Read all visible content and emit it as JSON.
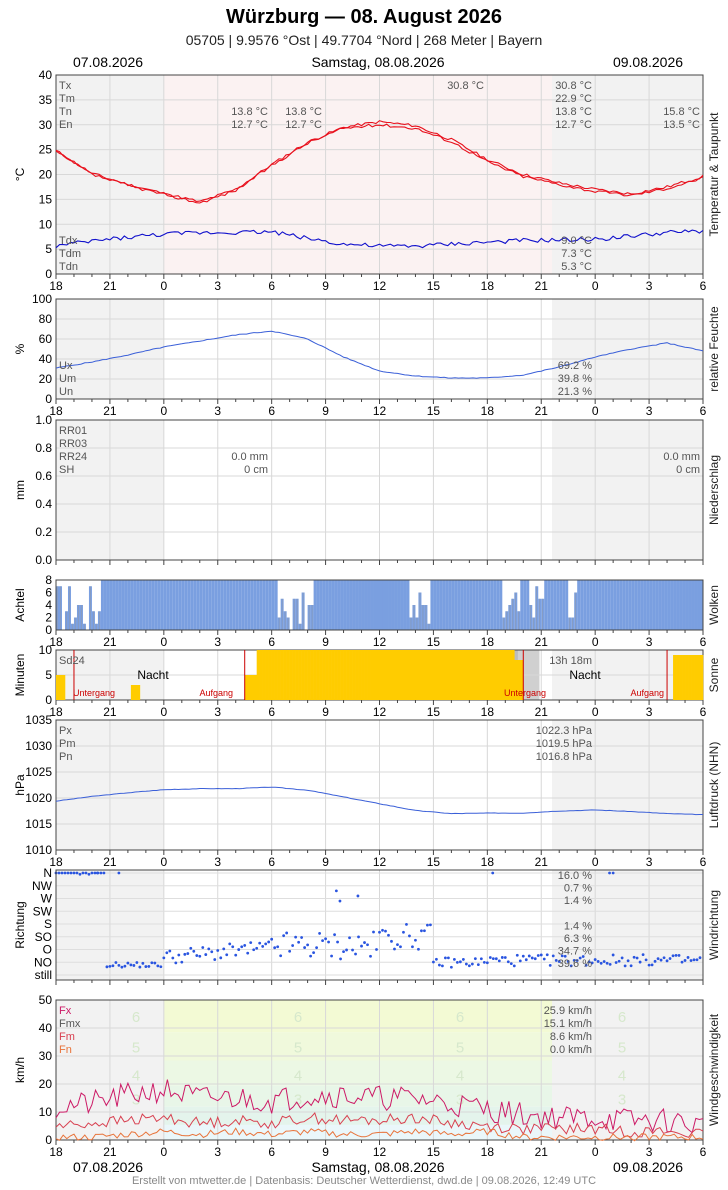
{
  "title": "Würzburg  —  08. August 2026",
  "subtitle": "05705  |  9.9576 °Ost  |  49.7704 °Nord  |  268 Meter  |  Bayern",
  "footer": "Erstellt von mtwetter.de | Datenbasis: Deutscher Wetterdienst, dwd.de | 09.08.2026, 12:49 UTC",
  "dates": {
    "left": "07.08.2026",
    "center": "Samstag, 08.08.2026",
    "right": "09.08.2026"
  },
  "colors": {
    "temp": "#e8101c",
    "dew": "#1010cc",
    "hum": "#3a5fd8",
    "cloud": "#7a9fe0",
    "sun": "#ffcc00",
    "press": "#3a5fd8",
    "wind": "#2a55e0",
    "gust": "#cc1a66",
    "windMax": "#d84050",
    "windMean": "#e8733a"
  },
  "chart_data": [
    {
      "type": "line",
      "ylabel": "°C",
      "side_label": "Temperatur & Taupunkt",
      "ylim": [
        0,
        40
      ],
      "yticks": [
        "0",
        "5",
        "10",
        "15",
        "20",
        "25",
        "30",
        "35",
        "40"
      ],
      "xticks": [
        "18",
        "21",
        "0",
        "3",
        "6",
        "9",
        "12",
        "15",
        "18",
        "21",
        "0",
        "3",
        "6"
      ],
      "hours": [
        18,
        20,
        22,
        24,
        26,
        28,
        30,
        32,
        34,
        36,
        38,
        40,
        42,
        44,
        46,
        48,
        50,
        52,
        54
      ],
      "series": [
        {
          "name": "Tx",
          "values": [
            24.8,
            20.2,
            18.0,
            16.2,
            14.5,
            17.0,
            22.0,
            26.5,
            29.5,
            30.6,
            29.8,
            27.0,
            23.0,
            20.0,
            18.3,
            17.0,
            16.1,
            17.5,
            19.6
          ]
        },
        {
          "name": "Tn",
          "values": [
            24.6,
            20.0,
            17.8,
            16.0,
            14.3,
            16.8,
            21.8,
            26.3,
            29.3,
            30.0,
            29.3,
            26.6,
            22.6,
            19.6,
            18.0,
            16.6,
            15.8,
            17.2,
            19.3
          ]
        },
        {
          "name": "Td",
          "values": [
            5.6,
            6.6,
            7.4,
            8.0,
            8.3,
            8.4,
            8.5,
            7.2,
            6.0,
            5.6,
            5.6,
            6.0,
            6.4,
            6.7,
            6.8,
            7.0,
            7.6,
            8.3,
            8.6
          ]
        }
      ],
      "labels": {
        "legend_top": [
          "Tx",
          "Tm",
          "Tn",
          "En"
        ],
        "legend_bottom": [
          "Tdx",
          "Tdm",
          "Tdn"
        ],
        "day1": [
          "13.8 °C",
          "12.7 °C"
        ],
        "night1": [
          "13.8 °C",
          "12.7 °C"
        ],
        "daymax": "30.8 °C",
        "stats_top": [
          "30.8 °C",
          "22.9 °C",
          "13.8 °C",
          "12.7 °C"
        ],
        "right": [
          "15.8 °C",
          "13.5 °C"
        ],
        "stats_bottom": [
          "9.0 °C",
          "7.3 °C",
          "5.3 °C"
        ]
      }
    },
    {
      "type": "line",
      "ylabel": "%",
      "side_label": "relative Feuchte",
      "ylim": [
        0,
        100
      ],
      "yticks": [
        "0",
        "20",
        "40",
        "60",
        "80",
        "100"
      ],
      "hours": [
        18,
        20,
        22,
        24,
        26,
        28,
        30,
        32,
        34,
        36,
        38,
        40,
        42,
        44,
        46,
        48,
        50,
        52,
        54
      ],
      "series": [
        {
          "name": "U",
          "values": [
            31,
            37,
            44,
            52,
            58,
            64,
            68,
            60,
            42,
            28,
            23,
            21,
            21,
            24,
            32,
            42,
            50,
            56,
            48
          ]
        }
      ],
      "labels": {
        "legend": [
          "Ux",
          "Um",
          "Un"
        ],
        "stats": [
          "69.2 %",
          "39.8 %",
          "21.3 %"
        ]
      }
    },
    {
      "type": "bar",
      "ylabel": "mm",
      "side_label": "Niederschlag",
      "ylim": [
        0,
        1.0
      ],
      "yticks": [
        "0.0",
        "0.2",
        "0.4",
        "0.6",
        "0.8",
        "1.0"
      ],
      "values": [],
      "labels": {
        "legend": [
          "RR01",
          "RR03",
          "RR24",
          "SH"
        ],
        "day_rr": "0.0 mm",
        "day_sh": "0 cm",
        "right_rr": "0.0 mm",
        "right_sh": "0 cm"
      }
    },
    {
      "type": "bar",
      "ylabel": "Achtel",
      "side_label": "Wolken",
      "ylim": [
        0,
        8
      ],
      "yticks": [
        "0",
        "2",
        "4",
        "6",
        "8"
      ]
    },
    {
      "type": "bar",
      "ylabel": "Minuten",
      "side_label": "Sonne",
      "ylim": [
        0,
        10
      ],
      "yticks": [
        "0",
        "5",
        "10"
      ],
      "labels": {
        "sd24": "Sd24",
        "night": "Nacht",
        "sunset": "Untergang",
        "sunrise": "Aufgang",
        "duration": "13h 18m"
      }
    },
    {
      "type": "line",
      "ylabel": "hPa",
      "side_label": "Luftdruck (NHN)",
      "ylim": [
        1010,
        1035
      ],
      "yticks": [
        "1010",
        "1015",
        "1020",
        "1025",
        "1030",
        "1035"
      ],
      "hours": [
        18,
        20,
        22,
        24,
        26,
        28,
        30,
        32,
        34,
        36,
        38,
        40,
        42,
        44,
        46,
        48,
        50,
        52,
        54
      ],
      "series": [
        {
          "name": "P",
          "values": [
            1019.4,
            1020.3,
            1021.0,
            1021.6,
            1021.8,
            1021.8,
            1022.1,
            1021.5,
            1020.2,
            1018.9,
            1017.6,
            1017.0,
            1017.1,
            1017.1,
            1017.5,
            1017.7,
            1017.4,
            1017.0,
            1016.8
          ]
        }
      ],
      "labels": {
        "legend": [
          "Px",
          "Pm",
          "Pn"
        ],
        "stats": [
          "1022.3 hPa",
          "1019.5 hPa",
          "1016.8 hPa"
        ]
      }
    },
    {
      "type": "scatter",
      "ylabel": "Richtung",
      "side_label": "Windrichtung",
      "categories": [
        "still",
        "NO",
        "O",
        "SO",
        "S",
        "SW",
        "W",
        "NW",
        "N"
      ],
      "labels": {
        "stats": [
          "16.0 %",
          "0.7 %",
          "1.4 %",
          "",
          "1.4 %",
          "6.3 %",
          "34.7 %",
          "39.6 %"
        ]
      }
    },
    {
      "type": "line",
      "ylabel": "km/h",
      "side_label": "Windgeschwindigkeit",
      "ylim": [
        0,
        50
      ],
      "yticks": [
        "0",
        "10",
        "20",
        "30",
        "40",
        "50"
      ],
      "beaufort": [
        "3",
        "4",
        "5",
        "6"
      ],
      "hours": [
        18,
        20,
        22,
        24,
        26,
        28,
        30,
        32,
        34,
        36,
        38,
        40,
        42,
        44,
        46,
        48,
        50,
        52,
        54
      ],
      "series": [
        {
          "name": "Fx",
          "values": [
            12,
            13,
            16,
            18,
            15,
            15,
            14,
            16,
            16,
            15,
            15,
            13,
            11,
            9,
            8,
            8,
            7,
            7,
            5
          ]
        },
        {
          "name": "Fm",
          "values": [
            5,
            6,
            7,
            8,
            6,
            7,
            6,
            8,
            7,
            7,
            8,
            6,
            5,
            4,
            4,
            4,
            3,
            3,
            2
          ]
        },
        {
          "name": "Fn",
          "values": [
            1,
            1,
            2,
            3,
            2,
            3,
            2,
            3,
            2,
            2,
            3,
            2,
            3,
            1,
            1,
            1,
            1,
            1,
            1
          ]
        }
      ],
      "labels": {
        "legend": [
          "Fx",
          "Fmx",
          "Fm",
          "Fn"
        ],
        "stats": [
          "25.9 km/h",
          "15.1 km/h",
          "8.6 km/h",
          "0.0 km/h"
        ]
      }
    }
  ]
}
